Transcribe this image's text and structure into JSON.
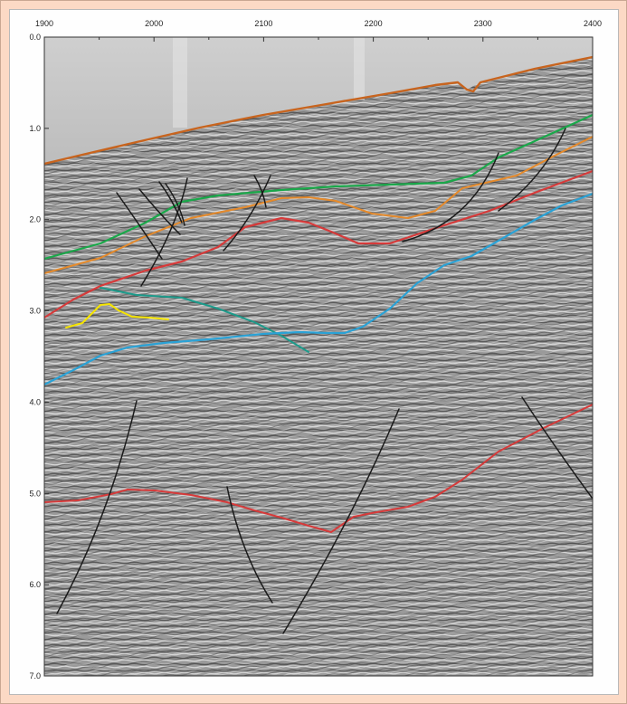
{
  "axes": {
    "x_ticks": [
      "1900",
      "2000",
      "2100",
      "2200",
      "2300",
      "2400"
    ],
    "x_values": [
      1900,
      2000,
      2100,
      2200,
      2300,
      2400
    ],
    "y_ticks": [
      "0.0",
      "1.0",
      "2.0",
      "3.0",
      "4.0",
      "5.0",
      "6.0",
      "7.0"
    ],
    "y_values": [
      0,
      1,
      2,
      3,
      4,
      5,
      6,
      7
    ],
    "x_range": [
      1900,
      2400
    ],
    "y_range": [
      0,
      7
    ]
  },
  "horizon_colors": {
    "seafloor": "#e58a2b",
    "green": "#1aa84a",
    "orange": "#e58a2b",
    "red": "#d63a3a",
    "teal": "#1c9a8a",
    "blue": "#2aa2d6",
    "yellow": "#f5e400",
    "fault": "#1a1a1a"
  },
  "background_color": "#fcd9c5"
}
